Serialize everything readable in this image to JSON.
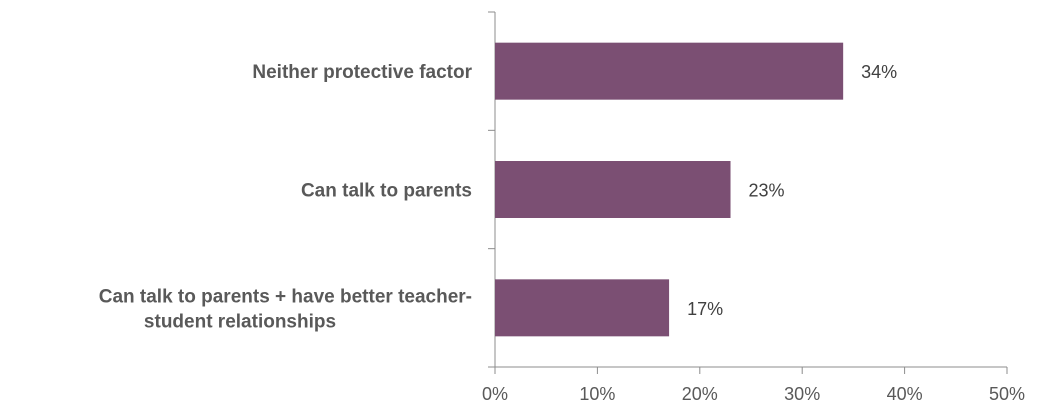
{
  "chart_data": {
    "type": "bar",
    "orientation": "horizontal",
    "categories": [
      [
        "Neither protective factor"
      ],
      [
        "Can talk to parents"
      ],
      [
        "Can talk to parents + have better teacher-",
        "student relationships"
      ]
    ],
    "values": [
      34,
      23,
      17
    ],
    "value_labels": [
      "34%",
      "23%",
      "17%"
    ],
    "xlim": [
      0,
      50
    ],
    "xticks": [
      0,
      10,
      20,
      30,
      40,
      50
    ],
    "xtick_labels": [
      "0%",
      "10%",
      "20%",
      "30%",
      "40%",
      "50%"
    ],
    "title": "",
    "xlabel": "",
    "ylabel": "",
    "grid": false,
    "bar_color": "#7b4f73"
  }
}
